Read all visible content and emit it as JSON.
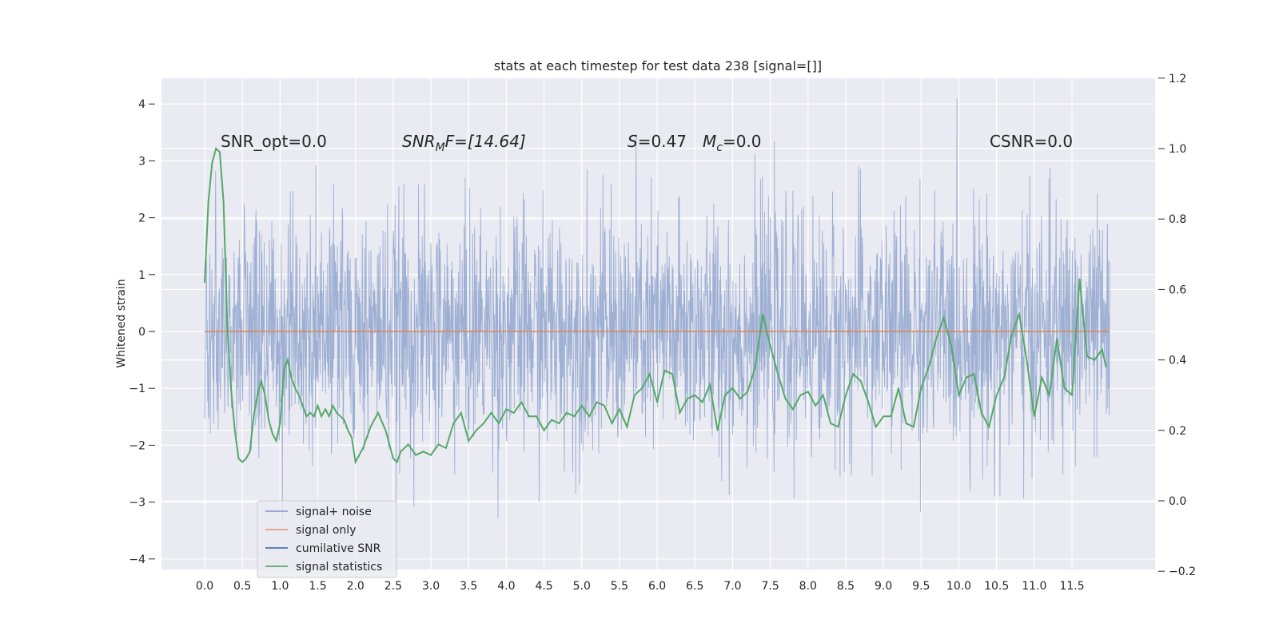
{
  "chart_data": {
    "type": "line",
    "title": "stats at each timestep for test data 238 [signal=[]]",
    "ylabel": "Whitened strain",
    "xlabel": "",
    "xlim": [
      -0.5,
      12.5
    ],
    "ylim": [
      -4.2,
      4.45
    ],
    "y2lim": [
      -0.2,
      1.2
    ],
    "grid": true,
    "legend_position": "lower-left",
    "x_ticks": [
      "0.0",
      "0.5",
      "1.0",
      "1.5",
      "2.0",
      "2.5",
      "3.0",
      "3.5",
      "4.0",
      "4.5",
      "5.0",
      "5.5",
      "6.0",
      "6.5",
      "7.0",
      "7.5",
      "8.0",
      "8.5",
      "9.0",
      "9.5",
      "10.0",
      "10.5",
      "11.0",
      "11.5"
    ],
    "y_ticks": [
      "4",
      "3",
      "2",
      "1",
      "0",
      "−1",
      "−2",
      "−3",
      "−4"
    ],
    "y2_ticks": [
      "1.2",
      "1.0",
      "0.8",
      "0.6",
      "0.4",
      "0.2",
      "0.0",
      "−0.2"
    ],
    "annotations": {
      "snr_opt": "SNR_opt=0.0",
      "snr_mf_base": "SNR",
      "snr_mf_sub": "M",
      "snr_mf_rest": "F=[14.64]",
      "s_label": "S",
      "s_value": "=0.47",
      "mc_label": "M",
      "mc_sub": "c",
      "mc_value": "=0.0",
      "csnr": "CSNR=0.0"
    },
    "legend": [
      {
        "label": "signal+ noise",
        "color": "#8da0cb"
      },
      {
        "label": "signal only",
        "color": "#e89b84"
      },
      {
        "label": "cumilative SNR",
        "color": "#4c72b0"
      },
      {
        "label": "signal statistics",
        "color": "#55a868"
      }
    ],
    "series": [
      {
        "name": "signal+ noise",
        "color": "#99acd1",
        "axis": "left",
        "description": "whitened strain noise, x from 0 to 12, values roughly between -3.8 and 4.1"
      },
      {
        "name": "signal only",
        "color": "#dd8452",
        "axis": "left",
        "x": [
          0,
          12
        ],
        "y": [
          0,
          0
        ]
      },
      {
        "name": "signal statistics",
        "color": "#55a868",
        "axis": "right",
        "x": [
          0,
          0.05,
          0.1,
          0.15,
          0.2,
          0.25,
          0.3,
          0.35,
          0.4,
          0.45,
          0.5,
          0.55,
          0.6,
          0.65,
          0.7,
          0.75,
          0.8,
          0.85,
          0.9,
          0.95,
          1.0,
          1.05,
          1.1,
          1.15,
          1.2,
          1.25,
          1.3,
          1.35,
          1.4,
          1.45,
          1.5,
          1.55,
          1.6,
          1.65,
          1.7,
          1.75,
          1.8,
          1.85,
          1.9,
          1.95,
          2.0,
          2.1,
          2.2,
          2.3,
          2.4,
          2.45,
          2.5,
          2.55,
          2.6,
          2.7,
          2.8,
          2.9,
          3.0,
          3.1,
          3.2,
          3.3,
          3.4,
          3.5,
          3.6,
          3.7,
          3.8,
          3.9,
          4.0,
          4.1,
          4.2,
          4.3,
          4.4,
          4.5,
          4.6,
          4.7,
          4.8,
          4.9,
          5.0,
          5.1,
          5.2,
          5.3,
          5.4,
          5.5,
          5.6,
          5.7,
          5.8,
          5.9,
          6.0,
          6.1,
          6.2,
          6.3,
          6.4,
          6.5,
          6.6,
          6.7,
          6.8,
          6.9,
          7.0,
          7.1,
          7.2,
          7.3,
          7.4,
          7.5,
          7.6,
          7.7,
          7.8,
          7.9,
          8.0,
          8.1,
          8.2,
          8.3,
          8.4,
          8.5,
          8.6,
          8.7,
          8.8,
          8.9,
          9.0,
          9.1,
          9.2,
          9.3,
          9.4,
          9.5,
          9.6,
          9.7,
          9.8,
          9.9,
          10.0,
          10.1,
          10.2,
          10.3,
          10.4,
          10.5,
          10.6,
          10.7,
          10.8,
          10.9,
          11.0,
          11.1,
          11.2,
          11.3,
          11.4,
          11.5,
          11.6,
          11.7,
          11.8,
          11.9,
          11.95
        ],
        "y": [
          0.62,
          0.85,
          0.96,
          1.0,
          0.99,
          0.85,
          0.5,
          0.32,
          0.2,
          0.12,
          0.11,
          0.12,
          0.14,
          0.24,
          0.3,
          0.34,
          0.3,
          0.23,
          0.19,
          0.17,
          0.22,
          0.37,
          0.4,
          0.35,
          0.32,
          0.3,
          0.27,
          0.24,
          0.25,
          0.24,
          0.27,
          0.24,
          0.26,
          0.24,
          0.27,
          0.25,
          0.24,
          0.23,
          0.2,
          0.18,
          0.11,
          0.15,
          0.21,
          0.25,
          0.2,
          0.16,
          0.12,
          0.11,
          0.14,
          0.16,
          0.13,
          0.14,
          0.13,
          0.16,
          0.15,
          0.22,
          0.25,
          0.17,
          0.2,
          0.22,
          0.25,
          0.22,
          0.26,
          0.25,
          0.28,
          0.24,
          0.24,
          0.2,
          0.23,
          0.22,
          0.25,
          0.24,
          0.27,
          0.24,
          0.28,
          0.27,
          0.22,
          0.26,
          0.21,
          0.3,
          0.32,
          0.36,
          0.28,
          0.37,
          0.36,
          0.25,
          0.29,
          0.3,
          0.28,
          0.33,
          0.2,
          0.3,
          0.32,
          0.29,
          0.31,
          0.38,
          0.53,
          0.44,
          0.36,
          0.29,
          0.26,
          0.3,
          0.31,
          0.27,
          0.3,
          0.22,
          0.21,
          0.3,
          0.36,
          0.34,
          0.28,
          0.21,
          0.24,
          0.24,
          0.32,
          0.22,
          0.21,
          0.32,
          0.38,
          0.46,
          0.52,
          0.44,
          0.3,
          0.35,
          0.36,
          0.25,
          0.21,
          0.3,
          0.35,
          0.47,
          0.53,
          0.4,
          0.24,
          0.35,
          0.3,
          0.46,
          0.32,
          0.3,
          0.63,
          0.41,
          0.4,
          0.43,
          0.38
        ]
      }
    ]
  }
}
